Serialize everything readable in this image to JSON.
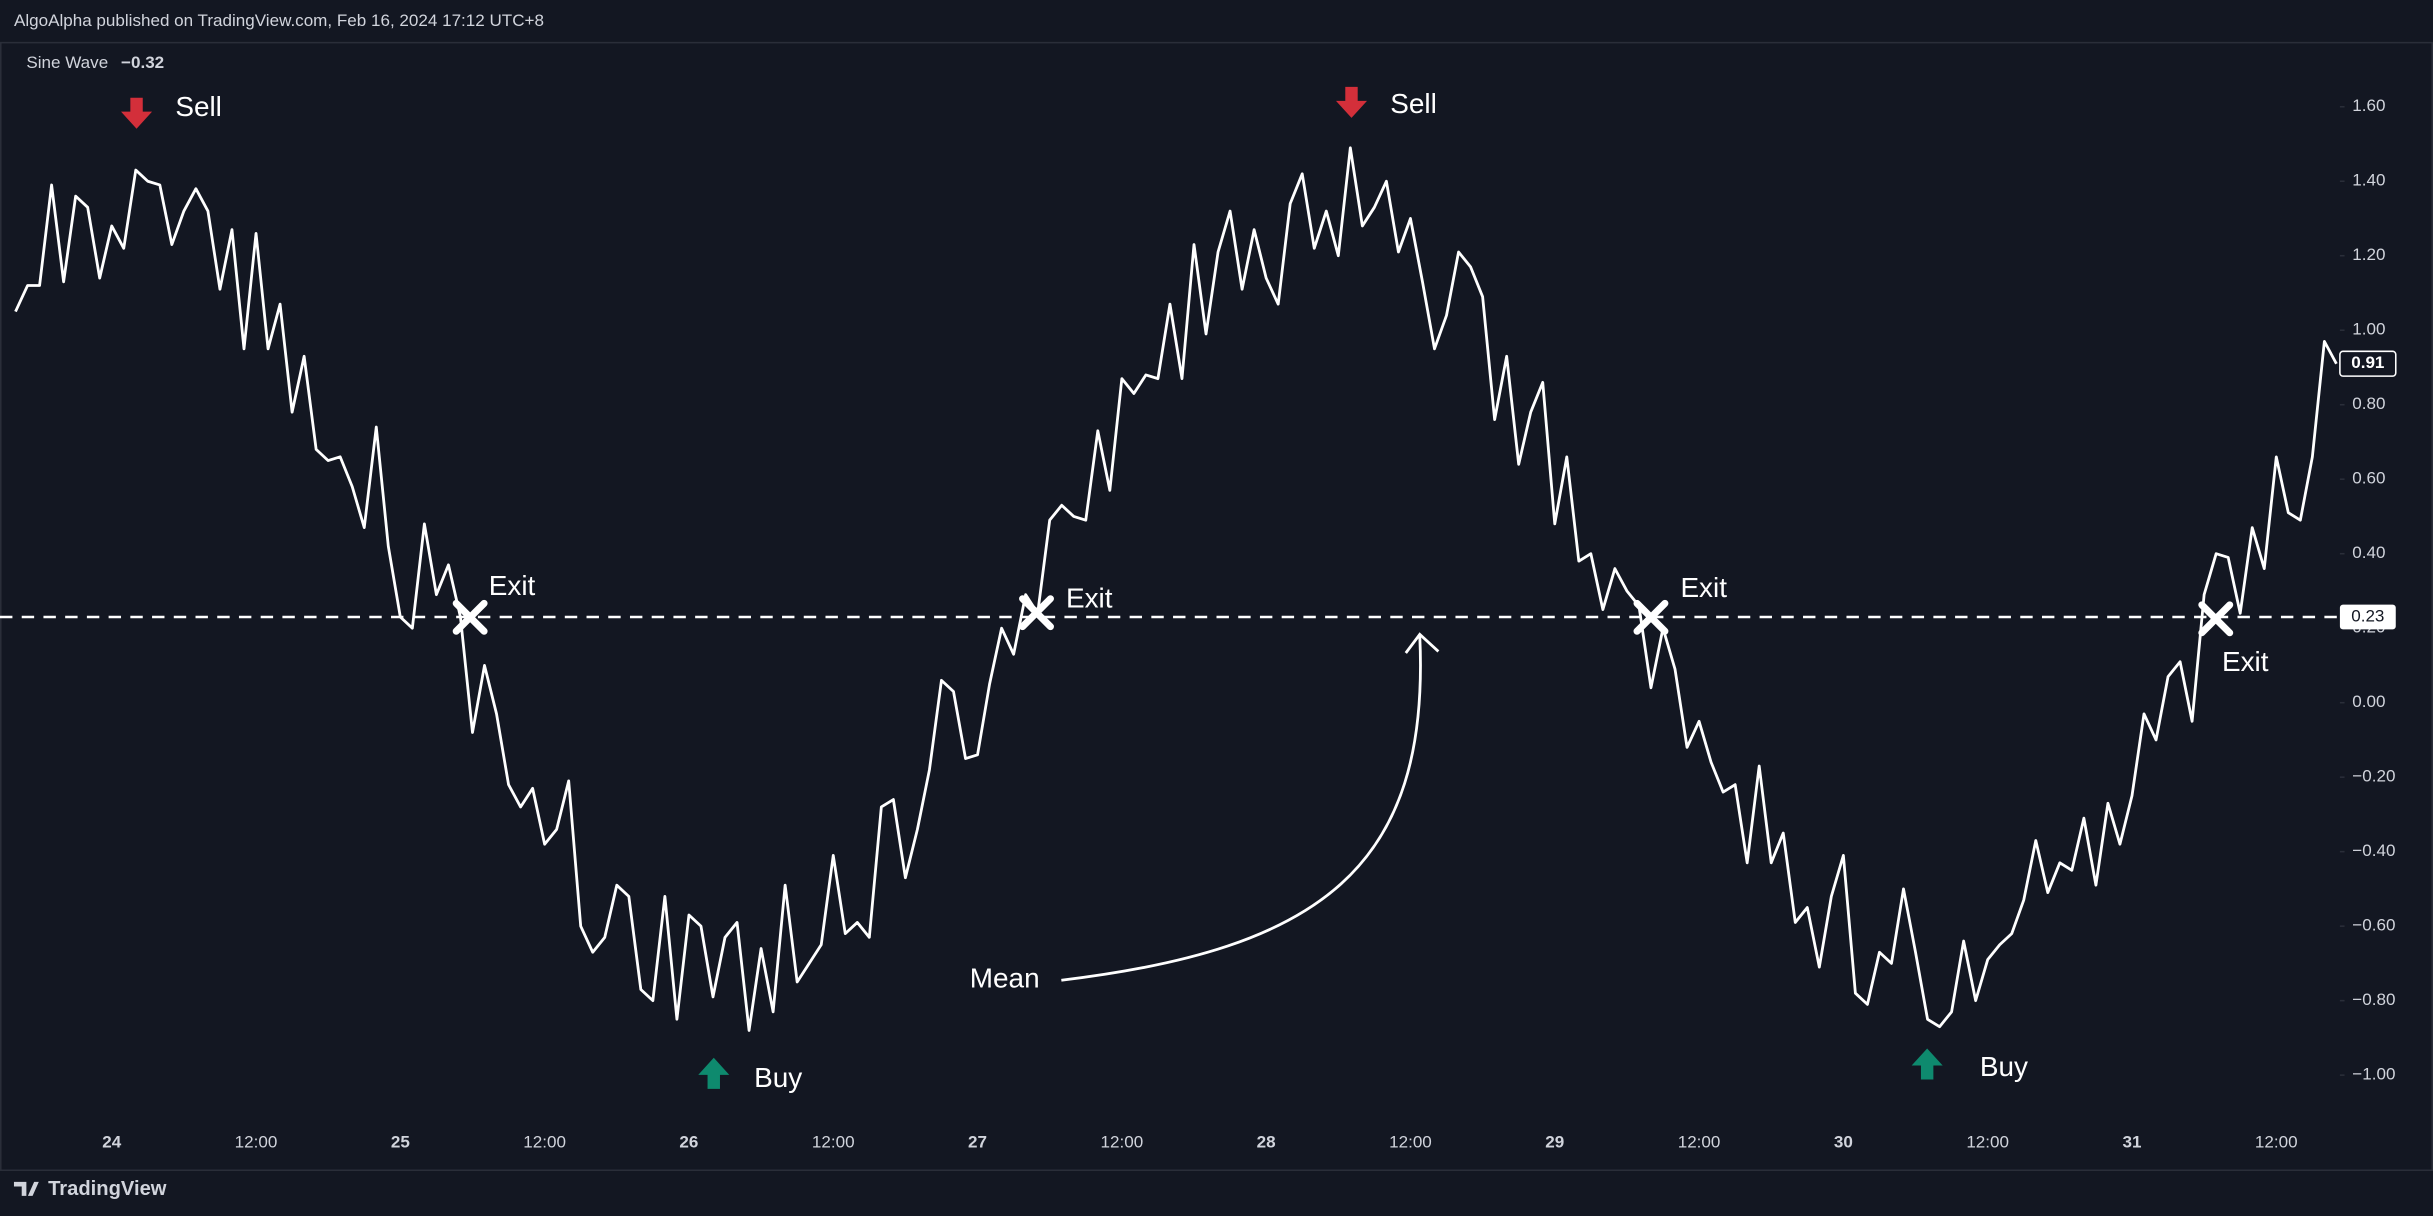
{
  "header": {
    "title": "AlgoAlpha published on TradingView.com, Feb 16, 2024 17:12 UTC+8"
  },
  "footer": {
    "brand": "TradingView"
  },
  "chart_data": {
    "type": "line",
    "legend_value": "−0.32",
    "categories": [
      null,
      null,
      null,
      null,
      null,
      null,
      null,
      null,
      "24",
      null,
      null,
      null,
      null,
      null,
      null,
      null,
      null,
      null,
      null,
      null,
      "12:00",
      null,
      null,
      null,
      null,
      null,
      null,
      null,
      null,
      null,
      null,
      null,
      "25",
      null,
      null,
      null,
      null,
      null,
      null,
      null,
      null,
      null,
      null,
      null,
      "12:00",
      null,
      null,
      null,
      null,
      null,
      null,
      null,
      null,
      null,
      null,
      null,
      "26",
      null,
      null,
      null,
      null,
      null,
      null,
      null,
      null,
      null,
      null,
      null,
      "12:00",
      null,
      null,
      null,
      null,
      null,
      null,
      null,
      null,
      null,
      null,
      null,
      "27",
      null,
      null,
      null,
      null,
      null,
      null,
      null,
      null,
      null,
      null,
      null,
      "12:00",
      null,
      null,
      null,
      null,
      null,
      null,
      null,
      null,
      null,
      null,
      null,
      "28",
      null,
      null,
      null,
      null,
      null,
      null,
      null,
      null,
      null,
      null,
      null,
      "12:00",
      null,
      null,
      null,
      null,
      null,
      null,
      null,
      null,
      null,
      null,
      null,
      "29",
      null,
      null,
      null,
      null,
      null,
      null,
      null,
      null,
      null,
      null,
      null,
      "12:00",
      null,
      null,
      null,
      null,
      null,
      null,
      null,
      null,
      null,
      null,
      null,
      "30",
      null,
      null,
      null,
      null,
      null,
      null,
      null,
      null,
      null,
      null,
      null,
      "12:00",
      null,
      null,
      null,
      null,
      null,
      null,
      null,
      null,
      null,
      null,
      null,
      "31",
      null,
      null,
      null,
      null,
      null,
      null,
      null,
      null,
      null,
      null,
      null,
      "12:00",
      null,
      null,
      null,
      null,
      null
    ],
    "series": [
      {
        "name": "Sine Wave",
        "color": "#ffffff",
        "values": [
          1.05,
          1.12,
          1.12,
          1.39,
          1.13,
          1.36,
          1.33,
          1.14,
          1.28,
          1.22,
          1.43,
          1.4,
          1.39,
          1.23,
          1.32,
          1.38,
          1.32,
          1.11,
          1.27,
          0.95,
          1.26,
          0.95,
          1.07,
          0.78,
          0.93,
          0.68,
          0.65,
          0.66,
          0.58,
          0.47,
          0.74,
          0.42,
          0.23,
          0.2,
          0.48,
          0.29,
          0.37,
          0.23,
          -0.08,
          0.1,
          -0.03,
          -0.22,
          -0.28,
          -0.23,
          -0.38,
          -0.34,
          -0.21,
          -0.6,
          -0.67,
          -0.63,
          -0.49,
          -0.52,
          -0.77,
          -0.8,
          -0.52,
          -0.85,
          -0.57,
          -0.6,
          -0.79,
          -0.63,
          -0.59,
          -0.88,
          -0.66,
          -0.83,
          -0.49,
          -0.75,
          -0.7,
          -0.65,
          -0.41,
          -0.62,
          -0.59,
          -0.63,
          -0.28,
          -0.26,
          -0.47,
          -0.34,
          -0.18,
          0.06,
          0.03,
          -0.15,
          -0.14,
          0.05,
          0.2,
          0.13,
          0.29,
          0.24,
          0.49,
          0.53,
          0.5,
          0.49,
          0.73,
          0.57,
          0.87,
          0.83,
          0.88,
          0.87,
          1.07,
          0.87,
          1.23,
          0.99,
          1.21,
          1.32,
          1.11,
          1.27,
          1.14,
          1.07,
          1.34,
          1.42,
          1.22,
          1.32,
          1.2,
          1.49,
          1.28,
          1.33,
          1.4,
          1.21,
          1.3,
          1.13,
          0.95,
          1.04,
          1.21,
          1.17,
          1.09,
          0.76,
          0.93,
          0.64,
          0.78,
          0.86,
          0.48,
          0.66,
          0.38,
          0.4,
          0.25,
          0.36,
          0.3,
          0.26,
          0.04,
          0.2,
          0.09,
          -0.12,
          -0.05,
          -0.16,
          -0.24,
          -0.22,
          -0.43,
          -0.17,
          -0.43,
          -0.35,
          -0.59,
          -0.55,
          -0.71,
          -0.52,
          -0.41,
          -0.78,
          -0.81,
          -0.67,
          -0.7,
          -0.5,
          -0.67,
          -0.85,
          -0.87,
          -0.83,
          -0.64,
          -0.8,
          -0.69,
          -0.65,
          -0.62,
          -0.53,
          -0.37,
          -0.51,
          -0.43,
          -0.45,
          -0.31,
          -0.49,
          -0.27,
          -0.38,
          -0.25,
          -0.03,
          -0.1,
          0.07,
          0.11,
          -0.05,
          0.29,
          0.4,
          0.39,
          0.24,
          0.47,
          0.36,
          0.66,
          0.51,
          0.49,
          0.66,
          0.97,
          0.91
        ]
      }
    ],
    "ylim": [
      -1.12,
      1.77
    ],
    "yticks": [
      {
        "value": 1.6,
        "label": "1.60"
      },
      {
        "value": 1.4,
        "label": "1.40"
      },
      {
        "value": 1.2,
        "label": "1.20"
      },
      {
        "value": 1,
        "label": "1.00"
      },
      {
        "value": 0.8,
        "label": "0.80"
      },
      {
        "value": 0.6,
        "label": "0.60"
      },
      {
        "value": 0.4,
        "label": "0.40"
      },
      {
        "value": 0.2,
        "label": "0.20"
      },
      {
        "value": 0,
        "label": "0.00"
      },
      {
        "value": -0.2,
        "label": "−0.20"
      },
      {
        "value": -0.4,
        "label": "−0.40"
      },
      {
        "value": -0.6,
        "label": "−0.60"
      },
      {
        "value": -0.8,
        "label": "−0.80"
      },
      {
        "value": -1,
        "label": "−1.00"
      }
    ],
    "grid": false,
    "mean": 0.23,
    "annotations": [
      "Sell",
      "Sell",
      "Buy",
      "Buy",
      "Exit",
      "Exit",
      "Exit",
      "Exit",
      "Mean"
    ]
  }
}
